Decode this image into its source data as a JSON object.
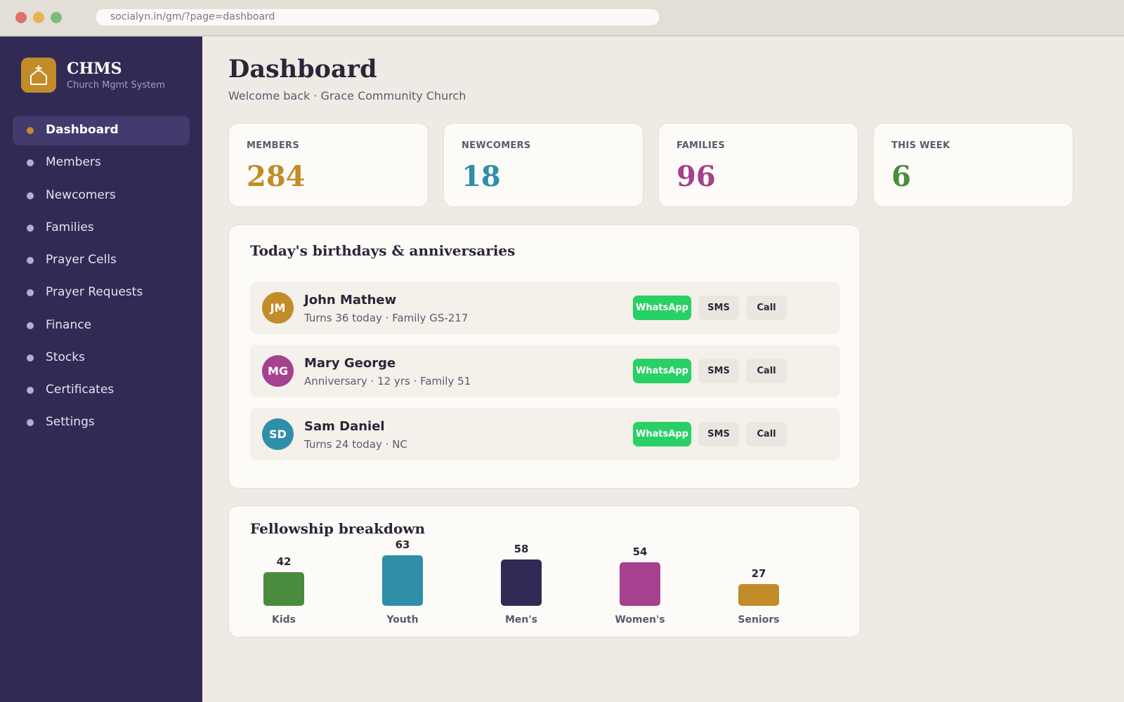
{
  "browser": {
    "url": "socialyn.in/gm/?page=dashboard"
  },
  "sidebar": {
    "logo_icon": "church-icon",
    "brand_name": "CHMS",
    "brand_sub": "Church Mgmt System",
    "items": [
      {
        "label": "Dashboard",
        "active": true
      },
      {
        "label": "Members"
      },
      {
        "label": "Newcomers"
      },
      {
        "label": "Families"
      },
      {
        "label": "Prayer Cells"
      },
      {
        "label": "Prayer Requests"
      },
      {
        "label": "Finance"
      },
      {
        "label": "Stocks"
      },
      {
        "label": "Certificates"
      },
      {
        "label": "Settings"
      }
    ]
  },
  "header": {
    "title": "Dashboard",
    "subtitle": "Welcome back · Grace Community Church"
  },
  "stats": [
    {
      "label": "MEMBERS",
      "value": "284",
      "color": "#c28c28"
    },
    {
      "label": "NEWCOMERS",
      "value": "18",
      "color": "#2f8fa8"
    },
    {
      "label": "FAMILIES",
      "value": "96",
      "color": "#a5418e"
    },
    {
      "label": "THIS WEEK",
      "value": "6",
      "color": "#4b8b3e"
    }
  ],
  "celebrations": {
    "title": "Today's birthdays & anniversaries",
    "people": [
      {
        "initials": "JM",
        "name": "John Mathew",
        "detail": "Turns 36 today · Family GS-217",
        "color": "#c28c28"
      },
      {
        "initials": "MG",
        "name": "Mary George",
        "detail": "Anniversary · 12 yrs · Family 51",
        "color": "#a5418e"
      },
      {
        "initials": "SD",
        "name": "Sam Daniel",
        "detail": "Turns 24 today · NC",
        "color": "#2f8fa8"
      }
    ],
    "actions": {
      "whatsapp": "WhatsApp",
      "sms": "SMS",
      "call": "Call"
    }
  },
  "fellowship": {
    "title": "Fellowship breakdown",
    "chart_data": {
      "type": "bar",
      "categories": [
        "Kids",
        "Youth",
        "Men's",
        "Women's",
        "Seniors"
      ],
      "values": [
        42,
        63,
        58,
        54,
        27
      ],
      "colors": [
        "#4b8b3e",
        "#2f8fa8",
        "#312a55",
        "#a5418e",
        "#c28c28"
      ]
    }
  }
}
